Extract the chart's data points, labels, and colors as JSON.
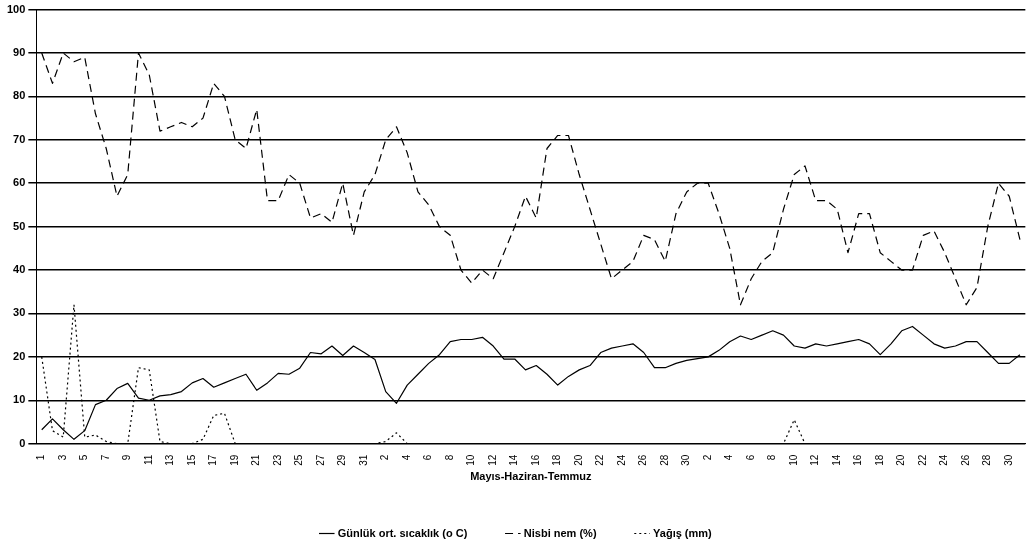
{
  "chart_data": {
    "type": "line",
    "xlabel": "Mayıs-Haziran-Temmuz",
    "categories": [
      "1",
      null,
      "3",
      null,
      "5",
      null,
      "7",
      null,
      "9",
      null,
      "11",
      null,
      "13",
      null,
      "15",
      null,
      "17",
      null,
      "19",
      null,
      "21",
      null,
      "23",
      null,
      "25",
      null,
      "27",
      null,
      "29",
      null,
      "31",
      null,
      "2",
      null,
      "4",
      null,
      "6",
      null,
      "8",
      null,
      "10",
      null,
      "12",
      null,
      "14",
      null,
      "16",
      null,
      "18",
      null,
      "20",
      null,
      "22",
      null,
      "24",
      null,
      "26",
      null,
      "28",
      null,
      "30",
      null,
      "2",
      null,
      "4",
      null,
      "6",
      null,
      "8",
      null,
      "10",
      null,
      "12",
      null,
      "14",
      null,
      "16",
      null,
      "18",
      null,
      "20",
      null,
      "22",
      null,
      "24",
      null,
      "26",
      null,
      "28",
      null,
      "30",
      null
    ],
    "series": [
      {
        "name": "Günlük ort. sıcaklık (o C)",
        "color": "#000000",
        "line_style": "solid",
        "values": [
          3.2,
          5.7,
          3.2,
          1,
          3,
          9,
          10,
          12.7,
          13.9,
          10.5,
          10,
          11,
          11.3,
          12,
          14,
          15,
          13,
          14,
          15,
          16,
          12.3,
          14,
          16.2,
          16,
          17.4,
          21,
          20.7,
          22.5,
          20.3,
          22.5,
          21,
          19.4,
          12,
          9.3,
          13.5,
          16,
          18.5,
          20.5,
          23.5,
          24,
          24,
          24.5,
          22.5,
          19.5,
          19.5,
          17,
          18,
          16,
          13.5,
          15.5,
          17,
          18,
          21,
          22,
          22.5,
          23,
          21,
          17.5,
          17.5,
          18.5,
          19.2,
          19.6,
          20,
          21.5,
          23.5,
          24.8,
          24,
          25,
          26,
          25,
          22.5,
          22,
          23,
          22.5,
          23,
          23.5,
          24,
          23,
          20.5,
          23,
          26,
          27,
          25,
          23,
          22,
          22.5,
          23.5,
          23.5,
          21,
          18.5,
          18.5,
          20.5
        ]
      },
      {
        "name": "Nisbi nem (%)",
        "color": "#000000",
        "line_style": "dashed",
        "values": [
          90,
          83,
          90,
          88,
          89,
          76,
          68,
          57,
          62,
          90,
          85,
          72,
          73,
          74,
          73,
          75,
          83,
          80,
          70,
          68,
          77,
          56,
          56,
          62,
          60,
          52,
          53,
          51,
          60,
          48,
          58,
          62,
          70,
          73,
          67,
          58,
          55,
          50,
          48,
          40,
          37,
          40,
          38,
          44,
          50,
          57,
          52,
          68,
          71,
          71,
          62,
          54,
          46,
          38,
          40,
          42,
          48,
          47,
          42,
          53,
          58,
          60,
          60,
          53,
          45,
          32,
          38,
          42,
          44,
          54,
          62,
          64,
          56,
          56,
          54,
          44,
          53,
          53,
          44,
          42,
          40,
          40,
          48,
          49,
          44,
          38,
          32,
          36,
          50,
          60,
          57,
          47
        ]
      },
      {
        "name": "Yağış (mm)",
        "color": "#000000",
        "line_style": "dotted",
        "values": [
          20,
          3,
          1.5,
          32,
          1.5,
          2,
          0.5,
          0,
          0,
          17.5,
          17,
          0.5,
          0,
          0,
          0,
          1,
          6.5,
          7,
          0,
          0,
          0,
          0,
          0,
          0,
          0,
          0,
          0,
          0,
          0,
          0,
          0,
          0,
          0.5,
          2.5,
          0,
          0,
          0,
          0,
          0,
          0,
          0,
          0,
          0,
          0,
          0,
          0,
          0,
          0,
          0,
          0,
          0,
          0,
          0,
          0,
          0,
          0,
          0,
          0,
          0,
          0,
          0,
          0,
          0,
          0,
          0,
          0,
          0,
          0,
          0,
          0,
          5.5,
          0,
          0,
          0,
          0,
          0,
          0,
          0,
          0,
          0,
          0,
          0,
          0,
          0,
          0,
          0,
          0,
          0,
          0,
          0,
          0,
          0
        ]
      }
    ],
    "ylim": [
      0,
      100
    ],
    "yticks": [
      0,
      10,
      20,
      30,
      40,
      50,
      60,
      70,
      80,
      90,
      100
    ],
    "grid": "y",
    "legend": "bottom",
    "marker": "none"
  }
}
